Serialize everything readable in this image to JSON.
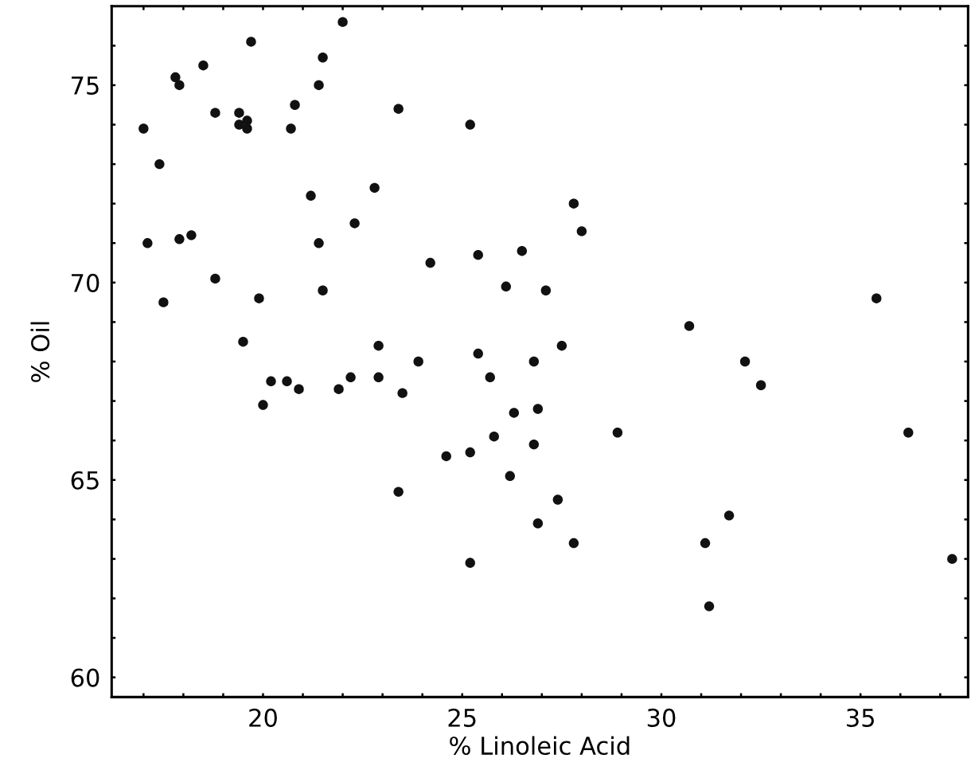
{
  "chart_data": {
    "type": "scatter",
    "xlabel": "% Linoleic Acid",
    "ylabel": "% Oil",
    "color": "#111111",
    "marker": "circle",
    "grid": false,
    "xlim": [
      16.2,
      37.7
    ],
    "ylim": [
      59.5,
      77.0
    ],
    "xticks": [
      {
        "value": 17,
        "label": null
      },
      {
        "value": 18,
        "label": null
      },
      {
        "value": 19,
        "label": null
      },
      20,
      {
        "value": 21,
        "label": null
      },
      {
        "value": 22,
        "label": null
      },
      {
        "value": 23,
        "label": null
      },
      {
        "value": 24,
        "label": null
      },
      25,
      {
        "value": 26,
        "label": null
      },
      {
        "value": 27,
        "label": null
      },
      {
        "value": 28,
        "label": null
      },
      {
        "value": 29,
        "label": null
      },
      30,
      {
        "value": 31,
        "label": null
      },
      {
        "value": 32,
        "label": null
      },
      {
        "value": 33,
        "label": null
      },
      {
        "value": 34,
        "label": null
      },
      35,
      {
        "value": 36,
        "label": null
      },
      {
        "value": 37,
        "label": null
      }
    ],
    "yticks": [
      60,
      {
        "value": 61,
        "label": null
      },
      {
        "value": 62,
        "label": null
      },
      {
        "value": 63,
        "label": null
      },
      {
        "value": 64,
        "label": null
      },
      65,
      {
        "value": 66,
        "label": null
      },
      {
        "value": 67,
        "label": null
      },
      {
        "value": 68,
        "label": null
      },
      {
        "value": 69,
        "label": null
      },
      70,
      {
        "value": 71,
        "label": null
      },
      {
        "value": 72,
        "label": null
      },
      {
        "value": 73,
        "label": null
      },
      {
        "value": 74,
        "label": null
      },
      75,
      {
        "value": 76,
        "label": null
      }
    ],
    "x": [
      17.0,
      17.1,
      17.4,
      17.5,
      17.8,
      17.9,
      17.9,
      18.2,
      18.5,
      18.8,
      18.8,
      19.4,
      19.4,
      19.6,
      19.6,
      19.7,
      19.5,
      19.9,
      20.0,
      20.2,
      20.6,
      20.7,
      20.8,
      20.9,
      21.2,
      21.4,
      21.4,
      21.5,
      21.5,
      21.9,
      22.0,
      22.2,
      22.3,
      22.8,
      22.9,
      22.9,
      23.4,
      23.4,
      23.5,
      23.9,
      24.2,
      24.6,
      25.2,
      25.2,
      25.2,
      25.4,
      25.4,
      25.7,
      25.8,
      26.1,
      26.2,
      26.3,
      26.5,
      26.8,
      26.8,
      26.9,
      26.9,
      27.1,
      27.4,
      27.5,
      27.8,
      27.8,
      28.0,
      28.9,
      30.7,
      31.1,
      31.2,
      31.7,
      32.1,
      32.5,
      35.4,
      36.2,
      37.3
    ],
    "values": [
      73.9,
      71.0,
      73.0,
      69.5,
      75.2,
      75.0,
      71.1,
      71.2,
      75.5,
      74.3,
      70.1,
      74.3,
      74.0,
      74.1,
      73.9,
      76.1,
      68.5,
      69.6,
      66.9,
      67.5,
      67.5,
      73.9,
      74.5,
      67.3,
      72.2,
      75.0,
      71.0,
      75.7,
      69.8,
      67.3,
      76.6,
      67.6,
      71.5,
      72.4,
      67.6,
      68.4,
      74.4,
      64.7,
      67.2,
      68.0,
      70.5,
      65.6,
      74.0,
      65.7,
      62.9,
      70.7,
      68.2,
      67.6,
      66.1,
      69.9,
      65.1,
      66.7,
      70.8,
      68.0,
      65.9,
      66.8,
      63.9,
      69.8,
      64.5,
      68.4,
      72.0,
      63.4,
      71.3,
      66.2,
      68.9,
      63.4,
      61.8,
      64.1,
      68.0,
      67.4,
      69.6,
      66.2,
      63.0
    ]
  }
}
